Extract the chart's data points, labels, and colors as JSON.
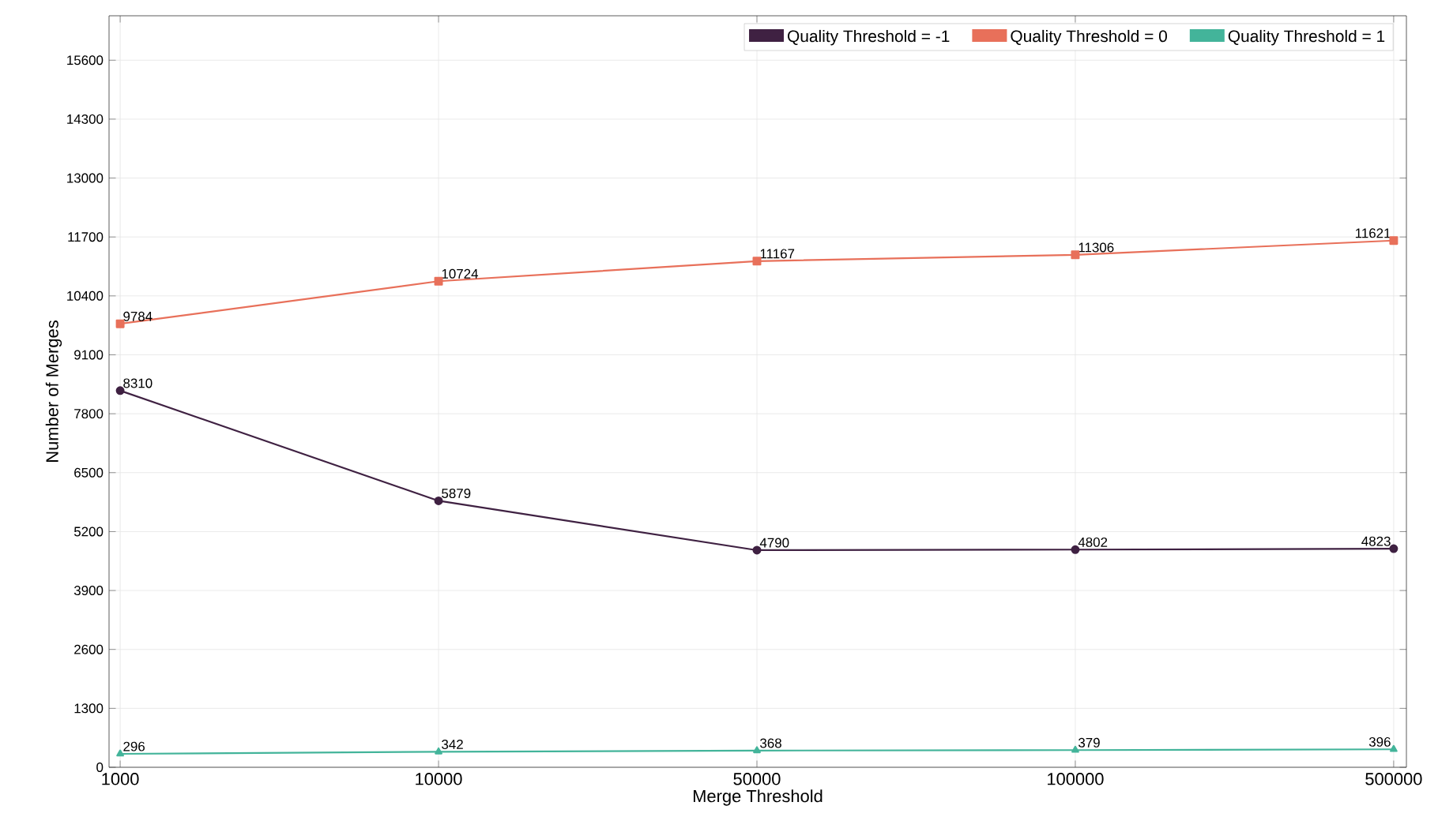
{
  "chart_data": {
    "type": "line",
    "xlabel": "Merge Threshold",
    "ylabel": "Number of Merges",
    "categories": [
      "1000",
      "10000",
      "50000",
      "100000",
      "500000"
    ],
    "series": [
      {
        "name": "Quality Threshold = -1",
        "color": "#3f2142",
        "marker": "circle",
        "values": [
          8310,
          5879,
          4790,
          4802,
          4823
        ]
      },
      {
        "name": "Quality Threshold = 0",
        "color": "#e8705a",
        "marker": "square",
        "values": [
          9784,
          10724,
          11167,
          11306,
          11621
        ]
      },
      {
        "name": "Quality Threshold = 1",
        "color": "#43b49a",
        "marker": "triangle",
        "values": [
          296,
          342,
          368,
          379,
          396
        ]
      }
    ],
    "ylim": [
      0,
      16580
    ],
    "yticks": [
      0,
      1300,
      2600,
      3900,
      5200,
      6500,
      7800,
      9100,
      10400,
      11700,
      13000,
      14300,
      15600
    ],
    "grid": true,
    "legend": "top right",
    "data_labels": true,
    "line_style": "solid"
  }
}
